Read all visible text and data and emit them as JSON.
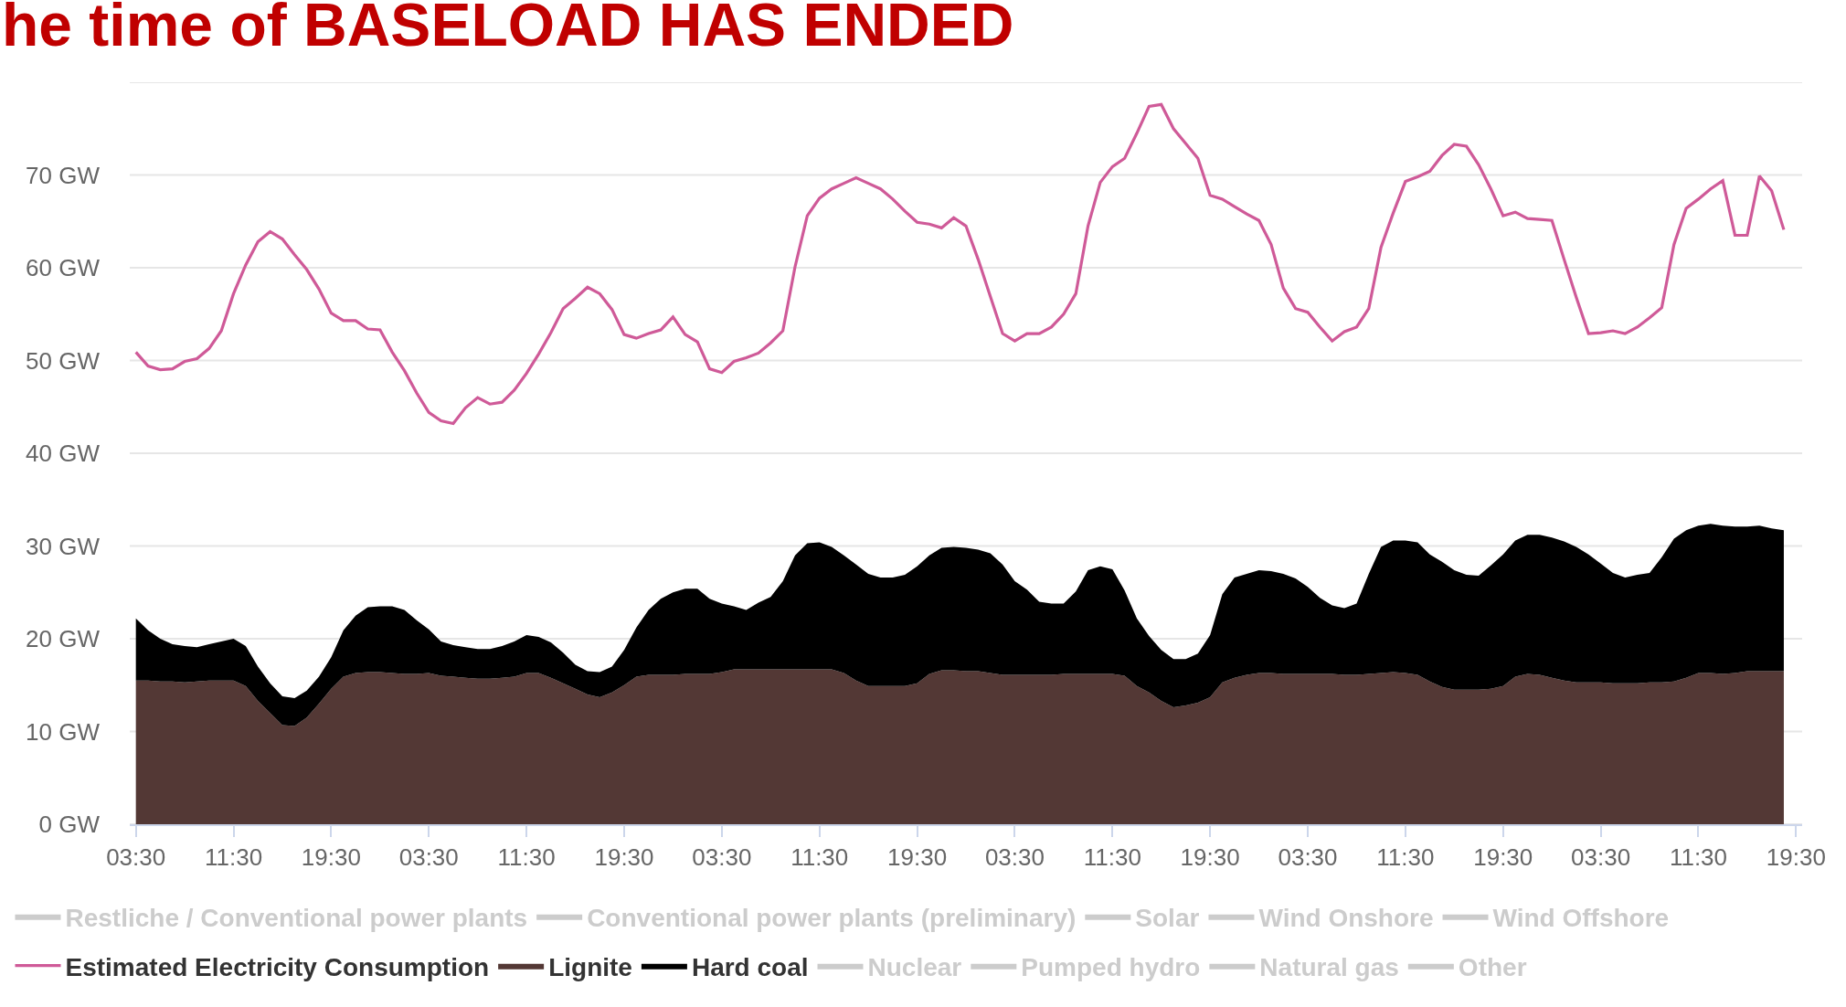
{
  "chart_data": {
    "type": "area",
    "title": "he time of BASELOAD HAS ENDED",
    "stacked": true,
    "grid": "y",
    "legend": "bottom",
    "categories": [
      "03:30",
      null,
      null,
      null,
      null,
      null,
      null,
      null,
      "11:30",
      null,
      null,
      null,
      null,
      null,
      null,
      null,
      "19:30",
      null,
      null,
      null,
      null,
      null,
      null,
      null,
      "03:30",
      null,
      null,
      null,
      null,
      null,
      null,
      null,
      "11:30",
      null,
      null,
      null,
      null,
      null,
      null,
      null,
      "19:30",
      null,
      null,
      null,
      null,
      null,
      null,
      null,
      "03:30",
      null,
      null,
      null,
      null,
      null,
      null,
      null,
      "11:30",
      null,
      null,
      null,
      null,
      null,
      null,
      null,
      "19:30",
      null,
      null,
      null,
      null,
      null,
      null,
      null,
      "03:30",
      null,
      null,
      null,
      null,
      null,
      null,
      null,
      "11:30",
      null,
      null,
      null,
      null,
      null,
      null,
      null,
      "19:30",
      null,
      null,
      null,
      null,
      null,
      null,
      null,
      "03:30",
      null,
      null,
      null,
      null,
      null,
      null,
      null,
      "11:30",
      null,
      null,
      null,
      null,
      null,
      null,
      null,
      "19:30",
      null,
      null,
      null,
      null,
      null,
      null,
      null,
      "03:30",
      null,
      null,
      null,
      null,
      null,
      null,
      null,
      "11:30",
      null,
      null,
      null,
      null,
      null,
      null,
      null,
      "19:30"
    ],
    "ylim": [
      0,
      80
    ],
    "yticks": [
      {
        "value": 0,
        "label": "0 GW"
      },
      {
        "value": 10,
        "label": "10 GW"
      },
      {
        "value": 20,
        "label": "20 GW"
      },
      {
        "value": 30,
        "label": "30 GW"
      },
      {
        "value": 40,
        "label": "40 GW"
      },
      {
        "value": 50,
        "label": "50 GW"
      },
      {
        "value": 60,
        "label": "60 GW"
      },
      {
        "value": 70,
        "label": "70 GW"
      },
      {
        "value": 80,
        "label": null
      }
    ],
    "series": [
      {
        "name": "Restliche / Conventional power plants",
        "color": "#cccccc",
        "values": [
          null,
          null,
          null,
          null,
          null,
          null,
          null,
          null,
          null,
          null,
          null,
          null,
          null,
          null,
          null,
          null,
          null,
          null,
          null,
          null,
          null,
          null,
          null,
          null,
          null,
          null,
          null,
          null,
          null,
          null,
          null,
          null,
          null,
          null,
          null,
          null,
          null,
          null,
          null,
          null,
          null,
          null,
          null,
          null,
          null,
          null,
          null,
          null,
          null,
          null,
          null,
          null,
          null,
          null,
          null,
          null,
          null,
          null,
          null,
          null,
          null,
          null,
          null,
          null,
          null,
          null,
          null,
          null,
          null,
          null,
          null,
          null,
          null,
          null,
          null,
          null,
          null,
          null,
          null,
          null,
          null,
          null,
          null,
          null,
          null,
          null,
          null,
          null,
          null,
          null,
          null,
          null,
          null,
          null,
          null,
          null,
          null,
          null,
          null,
          null,
          null,
          null,
          null,
          null,
          null,
          null,
          null,
          null,
          null,
          null,
          null,
          null,
          null,
          null,
          null,
          null,
          null,
          null,
          null,
          null,
          null,
          null,
          null,
          null,
          null,
          null,
          null,
          null,
          null,
          null,
          null,
          null,
          null,
          null,
          null,
          null,
          null
        ]
      },
      {
        "name": "Conventional power plants (preliminary)",
        "color": "#cccccc",
        "values": [
          null,
          null,
          null,
          null,
          null,
          null,
          null,
          null,
          null,
          null,
          null,
          null,
          null,
          null,
          null,
          null,
          null,
          null,
          null,
          null,
          null,
          null,
          null,
          null,
          null,
          null,
          null,
          null,
          null,
          null,
          null,
          null,
          null,
          null,
          null,
          null,
          null,
          null,
          null,
          null,
          null,
          null,
          null,
          null,
          null,
          null,
          null,
          null,
          null,
          null,
          null,
          null,
          null,
          null,
          null,
          null,
          null,
          null,
          null,
          null,
          null,
          null,
          null,
          null,
          null,
          null,
          null,
          null,
          null,
          null,
          null,
          null,
          null,
          null,
          null,
          null,
          null,
          null,
          null,
          null,
          null,
          null,
          null,
          null,
          null,
          null,
          null,
          null,
          null,
          null,
          null,
          null,
          null,
          null,
          null,
          null,
          null,
          null,
          null,
          null,
          null,
          null,
          null,
          null,
          null,
          null,
          null,
          null,
          null,
          null,
          null,
          null,
          null,
          null,
          null,
          null,
          null,
          null,
          null,
          null,
          null,
          null,
          null,
          null,
          null,
          null,
          null,
          null,
          null,
          null,
          null,
          null,
          null,
          null,
          null,
          null,
          null
        ]
      },
      {
        "name": "Solar",
        "color": "#cccccc",
        "values": [
          null,
          null,
          null,
          null,
          null,
          null,
          null,
          null,
          null,
          null,
          null,
          null,
          null,
          null,
          null,
          null,
          null,
          null,
          null,
          null,
          null,
          null,
          null,
          null,
          null,
          null,
          null,
          null,
          null,
          null,
          null,
          null,
          null,
          null,
          null,
          null,
          null,
          null,
          null,
          null,
          null,
          null,
          null,
          null,
          null,
          null,
          null,
          null,
          null,
          null,
          null,
          null,
          null,
          null,
          null,
          null,
          null,
          null,
          null,
          null,
          null,
          null,
          null,
          null,
          null,
          null,
          null,
          null,
          null,
          null,
          null,
          null,
          null,
          null,
          null,
          null,
          null,
          null,
          null,
          null,
          null,
          null,
          null,
          null,
          null,
          null,
          null,
          null,
          null,
          null,
          null,
          null,
          null,
          null,
          null,
          null,
          null,
          null,
          null,
          null,
          null,
          null,
          null,
          null,
          null,
          null,
          null,
          null,
          null,
          null,
          null,
          null,
          null,
          null,
          null,
          null,
          null,
          null,
          null,
          null,
          null,
          null,
          null,
          null,
          null,
          null,
          null,
          null,
          null,
          null,
          null,
          null,
          null,
          null,
          null,
          null,
          null
        ]
      },
      {
        "name": "Wind Onshore",
        "color": "#cccccc",
        "values": [
          null,
          null,
          null,
          null,
          null,
          null,
          null,
          null,
          null,
          null,
          null,
          null,
          null,
          null,
          null,
          null,
          null,
          null,
          null,
          null,
          null,
          null,
          null,
          null,
          null,
          null,
          null,
          null,
          null,
          null,
          null,
          null,
          null,
          null,
          null,
          null,
          null,
          null,
          null,
          null,
          null,
          null,
          null,
          null,
          null,
          null,
          null,
          null,
          null,
          null,
          null,
          null,
          null,
          null,
          null,
          null,
          null,
          null,
          null,
          null,
          null,
          null,
          null,
          null,
          null,
          null,
          null,
          null,
          null,
          null,
          null,
          null,
          null,
          null,
          null,
          null,
          null,
          null,
          null,
          null,
          null,
          null,
          null,
          null,
          null,
          null,
          null,
          null,
          null,
          null,
          null,
          null,
          null,
          null,
          null,
          null,
          null,
          null,
          null,
          null,
          null,
          null,
          null,
          null,
          null,
          null,
          null,
          null,
          null,
          null,
          null,
          null,
          null,
          null,
          null,
          null,
          null,
          null,
          null,
          null,
          null,
          null,
          null,
          null,
          null,
          null,
          null,
          null,
          null,
          null,
          null,
          null,
          null,
          null,
          null,
          null,
          null
        ]
      },
      {
        "name": "Wind Offshore",
        "color": "#cccccc",
        "values": [
          null,
          null,
          null,
          null,
          null,
          null,
          null,
          null,
          null,
          null,
          null,
          null,
          null,
          null,
          null,
          null,
          null,
          null,
          null,
          null,
          null,
          null,
          null,
          null,
          null,
          null,
          null,
          null,
          null,
          null,
          null,
          null,
          null,
          null,
          null,
          null,
          null,
          null,
          null,
          null,
          null,
          null,
          null,
          null,
          null,
          null,
          null,
          null,
          null,
          null,
          null,
          null,
          null,
          null,
          null,
          null,
          null,
          null,
          null,
          null,
          null,
          null,
          null,
          null,
          null,
          null,
          null,
          null,
          null,
          null,
          null,
          null,
          null,
          null,
          null,
          null,
          null,
          null,
          null,
          null,
          null,
          null,
          null,
          null,
          null,
          null,
          null,
          null,
          null,
          null,
          null,
          null,
          null,
          null,
          null,
          null,
          null,
          null,
          null,
          null,
          null,
          null,
          null,
          null,
          null,
          null,
          null,
          null,
          null,
          null,
          null,
          null,
          null,
          null,
          null,
          null,
          null,
          null,
          null,
          null,
          null,
          null,
          null,
          null,
          null,
          null,
          null,
          null,
          null,
          null,
          null,
          null,
          null,
          null,
          null,
          null,
          null
        ]
      },
      {
        "name": "Estimated Electricity Consumption",
        "type": "line",
        "color": "#cf5a98",
        "values": [
          50.9,
          49.4,
          49.0,
          49.1,
          49.9,
          50.2,
          51.3,
          53.2,
          57.2,
          60.3,
          62.8,
          63.9,
          63.1,
          61.4,
          59.8,
          57.7,
          55.1,
          54.3,
          54.3,
          53.4,
          53.3,
          50.9,
          48.9,
          46.5,
          44.4,
          43.5,
          43.2,
          44.9,
          46.0,
          45.3,
          45.5,
          46.8,
          48.6,
          50.7,
          53.0,
          55.6,
          56.7,
          57.9,
          57.2,
          55.5,
          52.8,
          52.4,
          52.9,
          53.3,
          54.7,
          52.8,
          52.0,
          49.1,
          48.7,
          49.9,
          50.3,
          50.8,
          51.9,
          53.2,
          60.1,
          65.6,
          67.5,
          68.5,
          69.1,
          69.7,
          69.1,
          68.5,
          67.4,
          66.1,
          64.9,
          64.7,
          64.3,
          65.4,
          64.5,
          60.9,
          56.9,
          52.9,
          52.1,
          52.9,
          52.9,
          53.6,
          55.0,
          57.2,
          64.5,
          69.2,
          70.9,
          71.8,
          74.5,
          77.4,
          77.6,
          75.0,
          73.4,
          71.8,
          67.8,
          67.4,
          66.6,
          65.8,
          65.1,
          62.5,
          57.8,
          55.6,
          55.2,
          53.6,
          52.1,
          53.1,
          53.6,
          55.6,
          62.2,
          65.9,
          69.3,
          69.8,
          70.4,
          72.1,
          73.3,
          73.1,
          71.1,
          68.5,
          65.6,
          66.0,
          65.3,
          65.2,
          65.1,
          60.9,
          56.8,
          52.9,
          53.0,
          53.2,
          52.9,
          53.6,
          54.6,
          55.7,
          62.5,
          66.4,
          67.4,
          68.5,
          69.4,
          63.5,
          63.5,
          69.9,
          68.3,
          64.1,
          null
        ]
      },
      {
        "name": "Lignite",
        "color": "#533835",
        "values": [
          15.5,
          15.5,
          15.4,
          15.4,
          15.3,
          15.4,
          15.5,
          15.5,
          15.5,
          14.9,
          13.3,
          12.0,
          10.7,
          10.6,
          11.5,
          13.0,
          14.6,
          15.9,
          16.3,
          16.4,
          16.4,
          16.3,
          16.2,
          16.2,
          16.3,
          16.0,
          15.9,
          15.8,
          15.7,
          15.7,
          15.8,
          15.9,
          16.3,
          16.3,
          15.8,
          15.2,
          14.6,
          14.0,
          13.7,
          14.2,
          15.0,
          15.9,
          16.1,
          16.1,
          16.1,
          16.2,
          16.2,
          16.2,
          16.4,
          16.7,
          16.7,
          16.7,
          16.7,
          16.7,
          16.7,
          16.7,
          16.7,
          16.7,
          16.3,
          15.5,
          14.9,
          14.9,
          14.9,
          14.9,
          15.2,
          16.2,
          16.6,
          16.6,
          16.5,
          16.5,
          16.3,
          16.1,
          16.1,
          16.1,
          16.1,
          16.1,
          16.2,
          16.2,
          16.2,
          16.2,
          16.2,
          16.0,
          14.9,
          14.2,
          13.3,
          12.6,
          12.8,
          13.1,
          13.7,
          15.3,
          15.8,
          16.1,
          16.3,
          16.3,
          16.2,
          16.2,
          16.2,
          16.2,
          16.2,
          16.1,
          16.1,
          16.2,
          16.3,
          16.4,
          16.3,
          16.1,
          15.4,
          14.8,
          14.5,
          14.5,
          14.5,
          14.6,
          14.9,
          15.9,
          16.2,
          16.1,
          15.8,
          15.5,
          15.3,
          15.3,
          15.3,
          15.2,
          15.2,
          15.2,
          15.3,
          15.3,
          15.4,
          15.8,
          16.3,
          16.3,
          16.2,
          16.3,
          16.5,
          16.5,
          16.5,
          16.5,
          null
        ]
      },
      {
        "name": "Hard coal",
        "color": "#000000",
        "values": [
          6.7,
          5.4,
          4.6,
          4.0,
          3.9,
          3.7,
          3.9,
          4.2,
          4.5,
          4.3,
          3.7,
          3.2,
          3.1,
          3.0,
          2.9,
          2.9,
          3.4,
          5.0,
          6.2,
          7.0,
          7.1,
          7.2,
          6.9,
          5.8,
          4.7,
          3.7,
          3.4,
          3.3,
          3.2,
          3.2,
          3.4,
          3.8,
          4.1,
          3.9,
          3.8,
          3.3,
          2.6,
          2.5,
          2.7,
          2.8,
          3.8,
          5.3,
          7.0,
          8.2,
          8.9,
          9.2,
          9.2,
          8.1,
          7.4,
          6.8,
          6.4,
          7.2,
          7.8,
          9.5,
          12.3,
          13.6,
          13.7,
          13.2,
          12.7,
          12.5,
          12.1,
          11.7,
          11.7,
          12.0,
          12.6,
          12.8,
          13.2,
          13.3,
          13.3,
          13.1,
          12.9,
          11.9,
          10.1,
          9.2,
          7.9,
          7.7,
          7.6,
          8.9,
          11.2,
          11.6,
          11.3,
          9.2,
          7.3,
          6.1,
          5.5,
          5.2,
          5.0,
          5.3,
          6.7,
          9.5,
          10.8,
          10.9,
          11.1,
          11.0,
          10.8,
          10.3,
          9.4,
          8.2,
          7.4,
          7.2,
          7.7,
          10.8,
          13.6,
          14.2,
          14.3,
          14.3,
          13.7,
          13.5,
          12.9,
          12.4,
          12.3,
          13.3,
          14.2,
          14.7,
          15.0,
          15.1,
          15.1,
          15.0,
          14.6,
          13.8,
          12.8,
          11.9,
          11.4,
          11.7,
          11.8,
          13.5,
          15.4,
          15.9,
          15.9,
          16.1,
          16.0,
          15.8,
          15.6,
          15.7,
          15.4,
          15.2,
          null
        ]
      },
      {
        "name": "Nuclear",
        "color": "#cccccc",
        "values": [
          null,
          null,
          null,
          null,
          null,
          null,
          null,
          null,
          null,
          null,
          null,
          null,
          null,
          null,
          null,
          null,
          null,
          null,
          null,
          null,
          null,
          null,
          null,
          null,
          null,
          null,
          null,
          null,
          null,
          null,
          null,
          null,
          null,
          null,
          null,
          null,
          null,
          null,
          null,
          null,
          null,
          null,
          null,
          null,
          null,
          null,
          null,
          null,
          null,
          null,
          null,
          null,
          null,
          null,
          null,
          null,
          null,
          null,
          null,
          null,
          null,
          null,
          null,
          null,
          null,
          null,
          null,
          null,
          null,
          null,
          null,
          null,
          null,
          null,
          null,
          null,
          null,
          null,
          null,
          null,
          null,
          null,
          null,
          null,
          null,
          null,
          null,
          null,
          null,
          null,
          null,
          null,
          null,
          null,
          null,
          null,
          null,
          null,
          null,
          null,
          null,
          null,
          null,
          null,
          null,
          null,
          null,
          null,
          null,
          null,
          null,
          null,
          null,
          null,
          null,
          null,
          null,
          null,
          null,
          null,
          null,
          null,
          null,
          null,
          null,
          null,
          null,
          null,
          null,
          null,
          null,
          null,
          null,
          null,
          null,
          null,
          null
        ]
      },
      {
        "name": "Pumped hydro",
        "color": "#cccccc",
        "values": [
          null,
          null,
          null,
          null,
          null,
          null,
          null,
          null,
          null,
          null,
          null,
          null,
          null,
          null,
          null,
          null,
          null,
          null,
          null,
          null,
          null,
          null,
          null,
          null,
          null,
          null,
          null,
          null,
          null,
          null,
          null,
          null,
          null,
          null,
          null,
          null,
          null,
          null,
          null,
          null,
          null,
          null,
          null,
          null,
          null,
          null,
          null,
          null,
          null,
          null,
          null,
          null,
          null,
          null,
          null,
          null,
          null,
          null,
          null,
          null,
          null,
          null,
          null,
          null,
          null,
          null,
          null,
          null,
          null,
          null,
          null,
          null,
          null,
          null,
          null,
          null,
          null,
          null,
          null,
          null,
          null,
          null,
          null,
          null,
          null,
          null,
          null,
          null,
          null,
          null,
          null,
          null,
          null,
          null,
          null,
          null,
          null,
          null,
          null,
          null,
          null,
          null,
          null,
          null,
          null,
          null,
          null,
          null,
          null,
          null,
          null,
          null,
          null,
          null,
          null,
          null,
          null,
          null,
          null,
          null,
          null,
          null,
          null,
          null,
          null,
          null,
          null,
          null,
          null,
          null,
          null,
          null,
          null,
          null,
          null,
          null,
          null
        ]
      },
      {
        "name": "Natural gas",
        "color": "#cccccc",
        "values": [
          null,
          null,
          null,
          null,
          null,
          null,
          null,
          null,
          null,
          null,
          null,
          null,
          null,
          null,
          null,
          null,
          null,
          null,
          null,
          null,
          null,
          null,
          null,
          null,
          null,
          null,
          null,
          null,
          null,
          null,
          null,
          null,
          null,
          null,
          null,
          null,
          null,
          null,
          null,
          null,
          null,
          null,
          null,
          null,
          null,
          null,
          null,
          null,
          null,
          null,
          null,
          null,
          null,
          null,
          null,
          null,
          null,
          null,
          null,
          null,
          null,
          null,
          null,
          null,
          null,
          null,
          null,
          null,
          null,
          null,
          null,
          null,
          null,
          null,
          null,
          null,
          null,
          null,
          null,
          null,
          null,
          null,
          null,
          null,
          null,
          null,
          null,
          null,
          null,
          null,
          null,
          null,
          null,
          null,
          null,
          null,
          null,
          null,
          null,
          null,
          null,
          null,
          null,
          null,
          null,
          null,
          null,
          null,
          null,
          null,
          null,
          null,
          null,
          null,
          null,
          null,
          null,
          null,
          null,
          null,
          null,
          null,
          null,
          null,
          null,
          null,
          null,
          null,
          null,
          null,
          null,
          null,
          null,
          null,
          null,
          null,
          null
        ]
      },
      {
        "name": "Other",
        "color": "#cccccc",
        "values": [
          null,
          null,
          null,
          null,
          null,
          null,
          null,
          null,
          null,
          null,
          null,
          null,
          null,
          null,
          null,
          null,
          null,
          null,
          null,
          null,
          null,
          null,
          null,
          null,
          null,
          null,
          null,
          null,
          null,
          null,
          null,
          null,
          null,
          null,
          null,
          null,
          null,
          null,
          null,
          null,
          null,
          null,
          null,
          null,
          null,
          null,
          null,
          null,
          null,
          null,
          null,
          null,
          null,
          null,
          null,
          null,
          null,
          null,
          null,
          null,
          null,
          null,
          null,
          null,
          null,
          null,
          null,
          null,
          null,
          null,
          null,
          null,
          null,
          null,
          null,
          null,
          null,
          null,
          null,
          null,
          null,
          null,
          null,
          null,
          null,
          null,
          null,
          null,
          null,
          null,
          null,
          null,
          null,
          null,
          null,
          null,
          null,
          null,
          null,
          null,
          null,
          null,
          null,
          null,
          null,
          null,
          null,
          null,
          null,
          null,
          null,
          null,
          null,
          null,
          null,
          null,
          null,
          null,
          null,
          null,
          null,
          null,
          null,
          null,
          null,
          null,
          null,
          null,
          null,
          null,
          null,
          null,
          null,
          null,
          null,
          null,
          null
        ]
      }
    ]
  }
}
